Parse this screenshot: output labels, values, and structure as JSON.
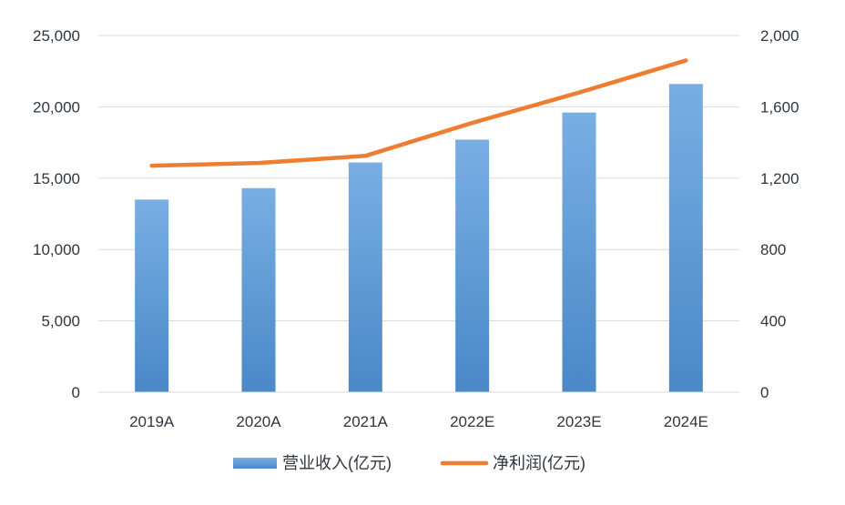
{
  "chart_data": {
    "type": "bar",
    "categories": [
      "2019A",
      "2020A",
      "2021A",
      "2022E",
      "2023E",
      "2024E"
    ],
    "series": [
      {
        "name": "营业收入(亿元)",
        "type": "bar",
        "axis": "left",
        "values": [
          13500,
          14300,
          16100,
          17700,
          19600,
          21600
        ],
        "color": "#5b9bd5"
      },
      {
        "name": "净利润(亿元)",
        "type": "line",
        "axis": "right",
        "values": [
          1270,
          1285,
          1325,
          1510,
          1680,
          1860
        ],
        "color": "#ed7d31"
      }
    ],
    "y_left": {
      "ylim": [
        0,
        25000
      ],
      "ticks": [
        0,
        5000,
        10000,
        15000,
        20000,
        25000
      ],
      "tick_labels": [
        "0",
        "5,000",
        "10,000",
        "15,000",
        "20,000",
        "25,000"
      ]
    },
    "y_right": {
      "ylim": [
        0,
        2000
      ],
      "ticks": [
        0,
        400,
        800,
        1200,
        1600,
        2000
      ],
      "tick_labels": [
        "0",
        "400",
        "800",
        "1,200",
        "1,600",
        "2,000"
      ]
    },
    "grid": true,
    "legend_position": "bottom"
  }
}
